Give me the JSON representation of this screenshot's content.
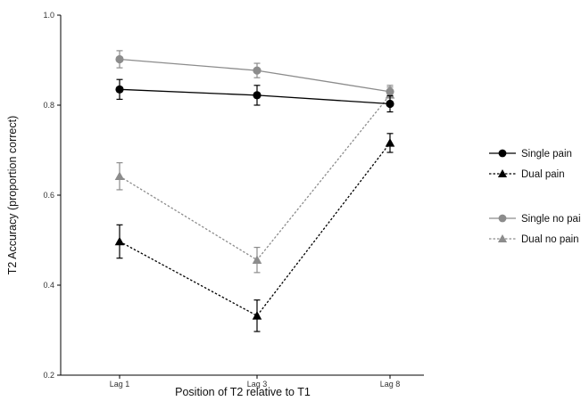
{
  "chart_data": {
    "type": "line",
    "title": "",
    "xlabel": "Position of T2 relative to T1",
    "ylabel": "T2 Accuracy (proportion correct)",
    "categories": [
      "Lag 1",
      "Lag 3",
      "Lag 8"
    ],
    "ylim": [
      0.2,
      1.0
    ],
    "yticks": [
      "0.2",
      "0.4",
      "0.6",
      "0.8",
      "1.0"
    ],
    "grid": false,
    "legend_position": "right",
    "legend_groups": [
      [
        "Single pain",
        "Dual pain"
      ],
      [
        "Single no pain",
        "Dual no pain"
      ]
    ],
    "series": [
      {
        "name": "Single pain",
        "values": [
          0.835,
          0.822,
          0.803
        ],
        "err": [
          0.022,
          0.022,
          0.018
        ],
        "color": "#000000",
        "marker": "circle",
        "dashed": false
      },
      {
        "name": "Dual pain",
        "values": [
          0.497,
          0.332,
          0.716
        ],
        "err": [
          0.037,
          0.035,
          0.021
        ],
        "color": "#000000",
        "marker": "triangle",
        "dashed": true
      },
      {
        "name": "Single no pain",
        "values": [
          0.902,
          0.877,
          0.83
        ],
        "err": [
          0.019,
          0.016,
          0.014
        ],
        "color": "#8c8c8c",
        "marker": "circle",
        "dashed": false
      },
      {
        "name": "Dual no pain",
        "values": [
          0.642,
          0.456,
          0.823
        ],
        "err": [
          0.03,
          0.028,
          0.017
        ],
        "color": "#8c8c8c",
        "marker": "triangle",
        "dashed": true
      }
    ]
  }
}
